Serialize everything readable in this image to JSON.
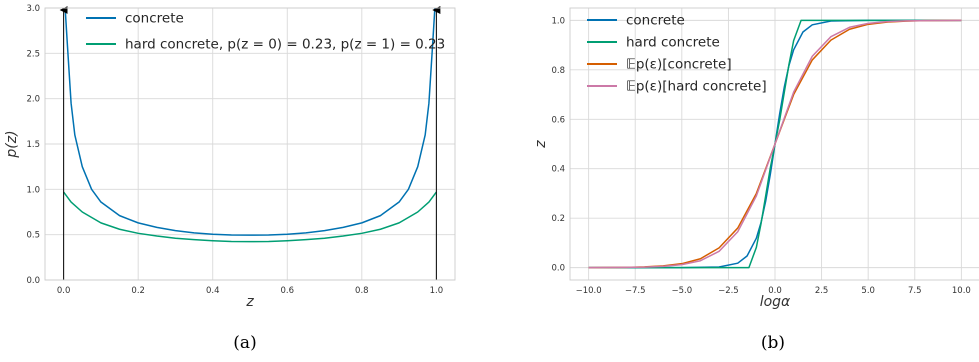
{
  "chart_data": [
    {
      "id": "a",
      "type": "line",
      "caption": "(a)",
      "xlabel": "z",
      "ylabel": "p(z)",
      "xlim": [
        -0.05,
        1.05
      ],
      "ylim": [
        0.0,
        3.0
      ],
      "xticks": [
        "0.0",
        "0.2",
        "0.4",
        "0.6",
        "0.8",
        "1.0"
      ],
      "xtick_values": [
        0.0,
        0.2,
        0.4,
        0.6,
        0.8,
        1.0
      ],
      "yticks": [
        "0.0",
        "0.5",
        "1.0",
        "1.5",
        "2.0",
        "2.5",
        "3.0"
      ],
      "ytick_values": [
        0.0,
        0.5,
        1.0,
        1.5,
        2.0,
        2.5,
        3.0
      ],
      "grid": true,
      "legend_position": "top-left",
      "series": [
        {
          "name": "concrete",
          "color": "#0072B2",
          "x": [
            0.004,
            0.01,
            0.02,
            0.03,
            0.05,
            0.075,
            0.1,
            0.15,
            0.2,
            0.25,
            0.3,
            0.35,
            0.4,
            0.45,
            0.5,
            0.55,
            0.6,
            0.65,
            0.7,
            0.75,
            0.8,
            0.85,
            0.9,
            0.925,
            0.95,
            0.97,
            0.98,
            0.99,
            0.996
          ],
          "y": [
            3.0,
            2.6,
            1.95,
            1.6,
            1.25,
            1.0,
            0.86,
            0.71,
            0.63,
            0.58,
            0.545,
            0.52,
            0.505,
            0.497,
            0.495,
            0.497,
            0.505,
            0.52,
            0.545,
            0.58,
            0.63,
            0.71,
            0.86,
            1.0,
            1.25,
            1.6,
            1.95,
            2.6,
            3.0
          ]
        },
        {
          "name": "hard concrete, p(z = 0) = 0.23, p(z = 1) = 0.23",
          "color": "#009E73",
          "x": [
            0.0,
            0.02,
            0.05,
            0.1,
            0.15,
            0.2,
            0.25,
            0.3,
            0.35,
            0.4,
            0.45,
            0.5,
            0.55,
            0.6,
            0.65,
            0.7,
            0.75,
            0.8,
            0.85,
            0.9,
            0.95,
            0.98,
            1.0
          ],
          "y": [
            0.97,
            0.86,
            0.75,
            0.63,
            0.56,
            0.515,
            0.485,
            0.46,
            0.445,
            0.433,
            0.425,
            0.423,
            0.425,
            0.433,
            0.445,
            0.46,
            0.485,
            0.515,
            0.56,
            0.63,
            0.75,
            0.86,
            0.97
          ]
        }
      ],
      "arrows": [
        {
          "x": 0.0,
          "y_from": 0.0,
          "y_to": 3.0,
          "color": "#000000"
        },
        {
          "x": 1.0,
          "y_from": 0.0,
          "y_to": 3.0,
          "color": "#000000"
        }
      ]
    },
    {
      "id": "b",
      "type": "line",
      "caption": "(b)",
      "xlabel": "logα",
      "ylabel": "z",
      "xlim": [
        -11.0,
        11.0
      ],
      "ylim": [
        -0.05,
        1.05
      ],
      "xticks": [
        "−10.0",
        "−7.5",
        "−5.0",
        "−2.5",
        "0.0",
        "2.5",
        "5.0",
        "7.5",
        "10.0"
      ],
      "xtick_values": [
        -10.0,
        -7.5,
        -5.0,
        -2.5,
        0.0,
        2.5,
        5.0,
        7.5,
        10.0
      ],
      "yticks": [
        "0.0",
        "0.2",
        "0.4",
        "0.6",
        "0.8",
        "1.0"
      ],
      "ytick_values": [
        0.0,
        0.2,
        0.4,
        0.6,
        0.8,
        1.0
      ],
      "grid": true,
      "legend_position": "top-left",
      "series": [
        {
          "name": "concrete",
          "color": "#0072B2",
          "x": [
            -10.0,
            -5.0,
            -3.0,
            -2.0,
            -1.5,
            -1.0,
            -0.75,
            -0.5,
            -0.25,
            0.0,
            0.25,
            0.5,
            0.75,
            1.0,
            1.5,
            2.0,
            3.0,
            5.0,
            10.0
          ],
          "y": [
            0.0,
            0.0,
            0.0025,
            0.018,
            0.047,
            0.119,
            0.182,
            0.269,
            0.378,
            0.5,
            0.622,
            0.731,
            0.818,
            0.881,
            0.953,
            0.982,
            0.9975,
            1.0,
            1.0
          ]
        },
        {
          "name": "hard concrete",
          "color": "#009E73",
          "x": [
            -10.0,
            -1.4,
            -1.0,
            -0.75,
            -0.5,
            -0.25,
            0.0,
            0.25,
            0.5,
            0.75,
            1.0,
            1.4,
            10.0
          ],
          "y": [
            0.0,
            0.0,
            0.082,
            0.178,
            0.29,
            0.404,
            0.5,
            0.596,
            0.71,
            0.822,
            0.918,
            1.0,
            1.0
          ]
        },
        {
          "name": "𝔼p(ε)[concrete]",
          "color": "#D55E00",
          "x": [
            -10.0,
            -8.0,
            -7.0,
            -6.0,
            -5.0,
            -4.0,
            -3.0,
            -2.0,
            -1.0,
            0.0,
            1.0,
            2.0,
            3.0,
            4.0,
            5.0,
            6.0,
            7.0,
            8.0,
            10.0
          ],
          "y": [
            0.0,
            0.001,
            0.003,
            0.007,
            0.016,
            0.036,
            0.08,
            0.16,
            0.3,
            0.5,
            0.7,
            0.84,
            0.92,
            0.964,
            0.984,
            0.993,
            0.997,
            0.999,
            1.0
          ]
        },
        {
          "name": "𝔼p(ε)[hard concrete]",
          "color": "#CC79A7",
          "x": [
            -10.0,
            -8.0,
            -7.0,
            -6.0,
            -5.0,
            -4.0,
            -3.0,
            -2.0,
            -1.0,
            0.0,
            1.0,
            2.0,
            3.0,
            4.0,
            5.0,
            6.0,
            7.0,
            8.0,
            10.0
          ],
          "y": [
            0.0,
            0.001,
            0.002,
            0.005,
            0.012,
            0.028,
            0.066,
            0.145,
            0.29,
            0.5,
            0.71,
            0.855,
            0.934,
            0.972,
            0.988,
            0.995,
            0.998,
            0.999,
            1.0
          ]
        }
      ]
    }
  ]
}
